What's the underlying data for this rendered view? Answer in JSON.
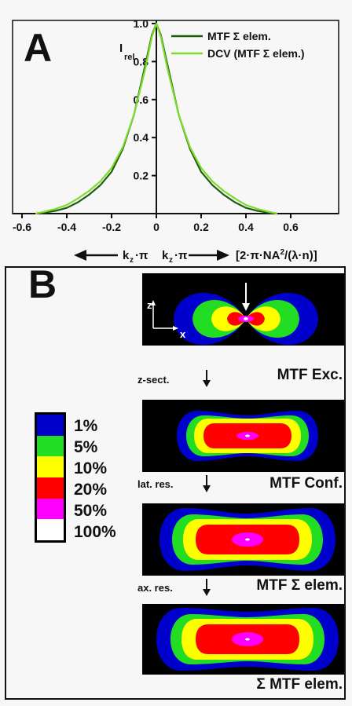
{
  "panel_a": {
    "letter": "A",
    "y_axis_label_main": "I",
    "y_axis_label_sub": "rel",
    "x_axis_caption": {
      "left_part": "k",
      "left_sub": "z",
      "left_suffix": "·π",
      "right_part": "k",
      "right_sub": "z",
      "right_suffix": "·π",
      "units": "[2·π·NA",
      "units_sup": "2",
      "units_tail": "/(λ·n)]"
    }
  },
  "chart_data": {
    "type": "line",
    "xlim": [
      -0.6,
      0.6
    ],
    "ylim": [
      0,
      1.0
    ],
    "x_ticks": [
      "-0.6",
      "-0.4",
      "-0.2",
      "0",
      "0.2",
      "0.4",
      "0.6"
    ],
    "y_ticks": [
      "0.2",
      "0.4",
      "0.6",
      "0.8",
      "1.0"
    ],
    "series": [
      {
        "name": "MTF Σ elem.",
        "color": "#1f5c10",
        "x": [
          -0.54,
          -0.5,
          -0.45,
          -0.4,
          -0.35,
          -0.3,
          -0.25,
          -0.2,
          -0.15,
          -0.1,
          -0.05,
          -0.02,
          0,
          0.02,
          0.05,
          0.1,
          0.15,
          0.2,
          0.25,
          0.3,
          0.35,
          0.4,
          0.45,
          0.5,
          0.54
        ],
        "y": [
          0.0,
          0.005,
          0.015,
          0.03,
          0.06,
          0.1,
          0.15,
          0.22,
          0.34,
          0.52,
          0.78,
          0.94,
          1.0,
          0.94,
          0.78,
          0.52,
          0.34,
          0.22,
          0.15,
          0.1,
          0.06,
          0.03,
          0.015,
          0.005,
          0.0
        ]
      },
      {
        "name": "DCV (MTF Σ elem.)",
        "color": "#7fdc2e",
        "x": [
          -0.54,
          -0.5,
          -0.45,
          -0.4,
          -0.35,
          -0.3,
          -0.25,
          -0.2,
          -0.15,
          -0.1,
          -0.05,
          -0.02,
          0,
          0.02,
          0.05,
          0.1,
          0.15,
          0.2,
          0.25,
          0.3,
          0.35,
          0.4,
          0.45,
          0.5,
          0.54
        ],
        "y": [
          0.0,
          0.01,
          0.025,
          0.045,
          0.08,
          0.12,
          0.17,
          0.24,
          0.35,
          0.52,
          0.76,
          0.93,
          1.0,
          0.93,
          0.76,
          0.52,
          0.35,
          0.24,
          0.17,
          0.12,
          0.08,
          0.045,
          0.025,
          0.01,
          0.0
        ]
      }
    ]
  },
  "panel_b": {
    "letter": "B",
    "axis_z": "z",
    "axis_x": "x",
    "tiles": [
      {
        "label": "MTF Exc."
      },
      {
        "label": "MTF Conf."
      },
      {
        "label": "MTF Σ elem."
      },
      {
        "label": "Σ MTF elem."
      }
    ],
    "steps": [
      "z-sect.",
      "lat. res.",
      "ax. res."
    ],
    "legend": [
      {
        "label": "1%",
        "color": "#0000cc"
      },
      {
        "label": "5%",
        "color": "#22dd22"
      },
      {
        "label": "10%",
        "color": "#ffff00"
      },
      {
        "label": "20%",
        "color": "#ff0000"
      },
      {
        "label": "50%",
        "color": "#ff00ff"
      },
      {
        "label": "100%",
        "color": "#ffffff"
      }
    ]
  }
}
